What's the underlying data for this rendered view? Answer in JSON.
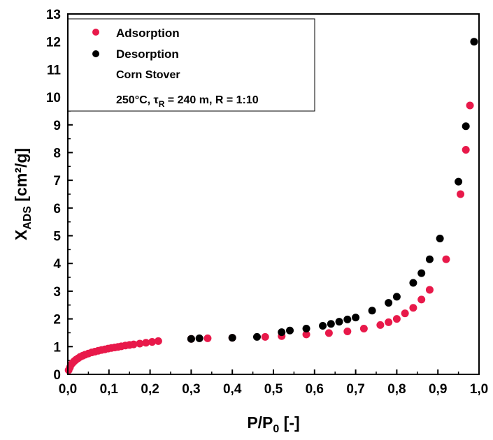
{
  "chart_data": {
    "type": "scatter",
    "xlabel": "P/P",
    "xlabel_sub": "0",
    "xlabel_suffix": " [-]",
    "ylabel": "X",
    "ylabel_sub": "ADS",
    "ylabel_suffix": " [cm²/g]",
    "xlim": [
      0.0,
      1.0
    ],
    "ylim": [
      0,
      13
    ],
    "x_ticks": [
      "0,0",
      "0,1",
      "0,2",
      "0,3",
      "0,4",
      "0,5",
      "0,6",
      "0,7",
      "0,8",
      "0,9",
      "1,0"
    ],
    "y_ticks": [
      "0",
      "1",
      "2",
      "3",
      "4",
      "5",
      "6",
      "7",
      "8",
      "9",
      "10",
      "11",
      "12",
      "13"
    ],
    "grid": false,
    "legend_position": "top-left",
    "series": [
      {
        "name": "Adsorption",
        "color": "#e8194a",
        "x": [
          0.002,
          0.005,
          0.008,
          0.012,
          0.016,
          0.02,
          0.025,
          0.03,
          0.036,
          0.042,
          0.05,
          0.058,
          0.066,
          0.074,
          0.082,
          0.09,
          0.098,
          0.106,
          0.114,
          0.122,
          0.13,
          0.14,
          0.15,
          0.16,
          0.175,
          0.19,
          0.205,
          0.22,
          0.3,
          0.34,
          0.4,
          0.48,
          0.52,
          0.58,
          0.635,
          0.68,
          0.72,
          0.76,
          0.78,
          0.8,
          0.82,
          0.84,
          0.86,
          0.88,
          0.92,
          0.955,
          0.968,
          0.978
        ],
        "y": [
          0.15,
          0.25,
          0.35,
          0.42,
          0.48,
          0.53,
          0.58,
          0.63,
          0.67,
          0.71,
          0.75,
          0.79,
          0.82,
          0.85,
          0.88,
          0.9,
          0.93,
          0.95,
          0.97,
          0.99,
          1.01,
          1.04,
          1.06,
          1.08,
          1.11,
          1.14,
          1.17,
          1.2,
          1.28,
          1.3,
          1.32,
          1.35,
          1.38,
          1.44,
          1.49,
          1.55,
          1.65,
          1.78,
          1.88,
          2.0,
          2.2,
          2.4,
          2.7,
          3.05,
          4.15,
          6.5,
          8.1,
          9.7
        ]
      },
      {
        "name": "Desorption",
        "color": "#000000",
        "x": [
          0.3,
          0.32,
          0.4,
          0.46,
          0.52,
          0.54,
          0.58,
          0.62,
          0.64,
          0.66,
          0.68,
          0.7,
          0.74,
          0.78,
          0.8,
          0.84,
          0.86,
          0.88,
          0.905,
          0.95,
          0.968,
          0.988
        ],
        "y": [
          1.28,
          1.3,
          1.32,
          1.35,
          1.52,
          1.58,
          1.65,
          1.75,
          1.82,
          1.9,
          1.98,
          2.05,
          2.3,
          2.58,
          2.8,
          3.3,
          3.65,
          4.15,
          4.9,
          6.95,
          8.95,
          12.0
        ]
      }
    ],
    "annotation": {
      "sample": "Corn Stover",
      "conditions_prefix": "250°C, τ",
      "conditions_sub": "R",
      "conditions_suffix": " = 240 m,  R = 1:10"
    }
  }
}
